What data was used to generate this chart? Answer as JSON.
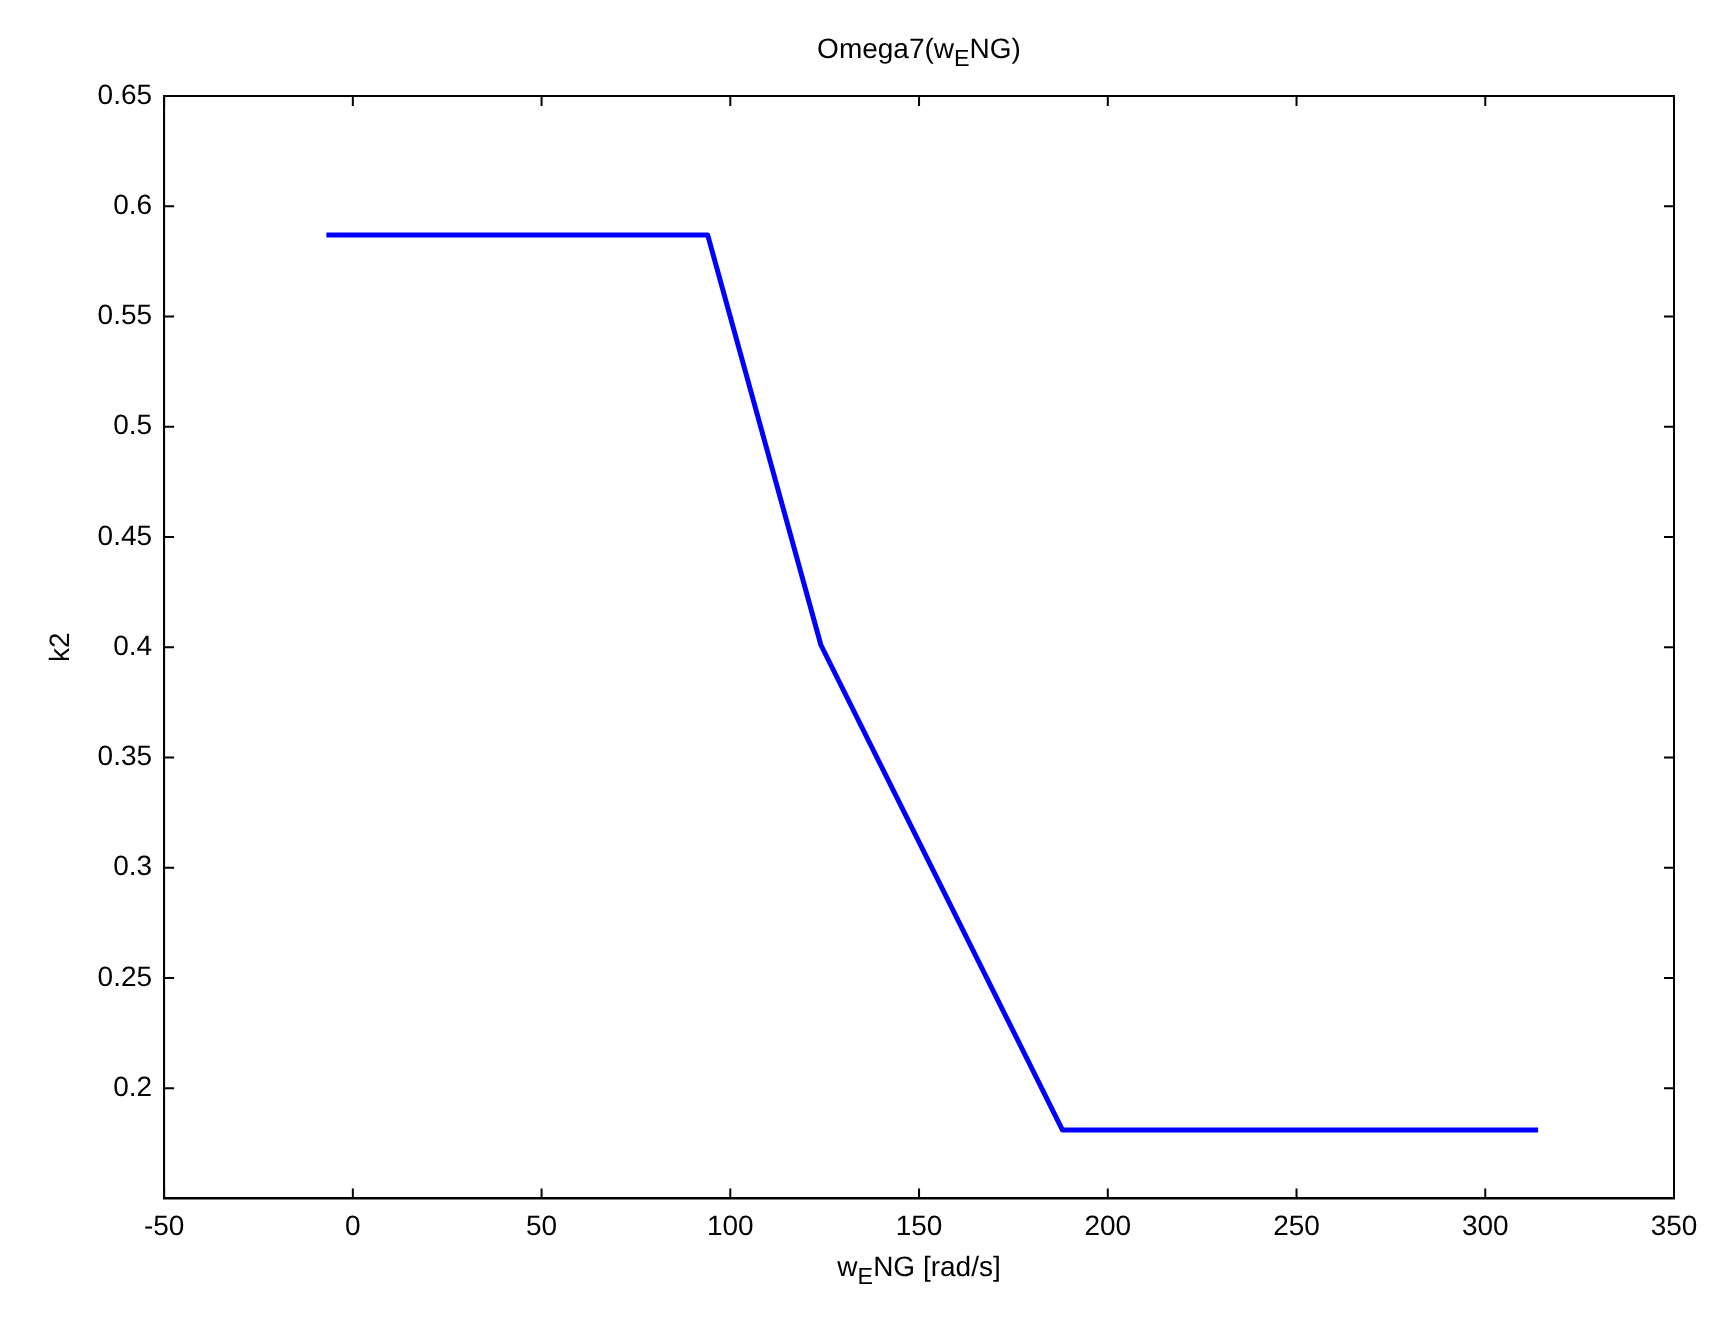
{
  "chart_data": {
    "type": "line",
    "title": "Omega7(w$_{E}$NG)",
    "xlabel": "w$_{E}$NG [rad/s]",
    "ylabel": "k2",
    "x": [
      -7,
      94,
      124,
      188,
      314
    ],
    "series": [
      {
        "color": "#0000ff",
        "values": [
          0.587,
          0.587,
          0.401,
          0.181,
          0.181
        ]
      }
    ],
    "xlim": [
      -50,
      350
    ],
    "xticks": [
      -50,
      0,
      50,
      100,
      150,
      200,
      250,
      300,
      350
    ],
    "ylim": [
      0.15,
      0.65
    ],
    "yticks": [
      0.2,
      0.25,
      0.3,
      0.35,
      0.4,
      0.45,
      0.5,
      0.55,
      0.6,
      0.65
    ],
    "grid": false,
    "legend": false,
    "marker": "none",
    "line_style": "solid"
  }
}
